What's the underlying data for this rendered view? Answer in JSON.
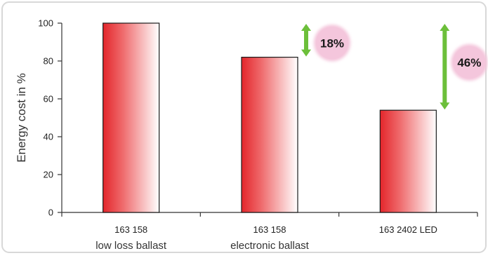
{
  "chart_data": {
    "type": "bar",
    "title": "",
    "ylabel": "Energy cost in %",
    "xlabel": "",
    "ylim": [
      0,
      100
    ],
    "yticks": [
      0,
      20,
      40,
      60,
      80,
      100
    ],
    "grid": false,
    "categories": [
      {
        "line1": "163 158",
        "line2": "low loss ballast"
      },
      {
        "line1": "163 158",
        "line2": "electronic ballast"
      },
      {
        "line1": "163 2402 LED",
        "line2": ""
      }
    ],
    "values": [
      100,
      82,
      54
    ],
    "annotations": [
      {
        "category_index": 1,
        "text": "18%",
        "from": 82,
        "to": 100
      },
      {
        "category_index": 2,
        "text": "46%",
        "from": 54,
        "to": 100
      }
    ],
    "colors": {
      "bar_dark": "#e3262b",
      "bar_light": "#ffffff",
      "bar_border": "#1a1a1a",
      "arrow": "#6cbf3a",
      "bubble": "#f4c6dc",
      "axis": "#333333",
      "outer_frame": "#cfcfcf"
    }
  }
}
